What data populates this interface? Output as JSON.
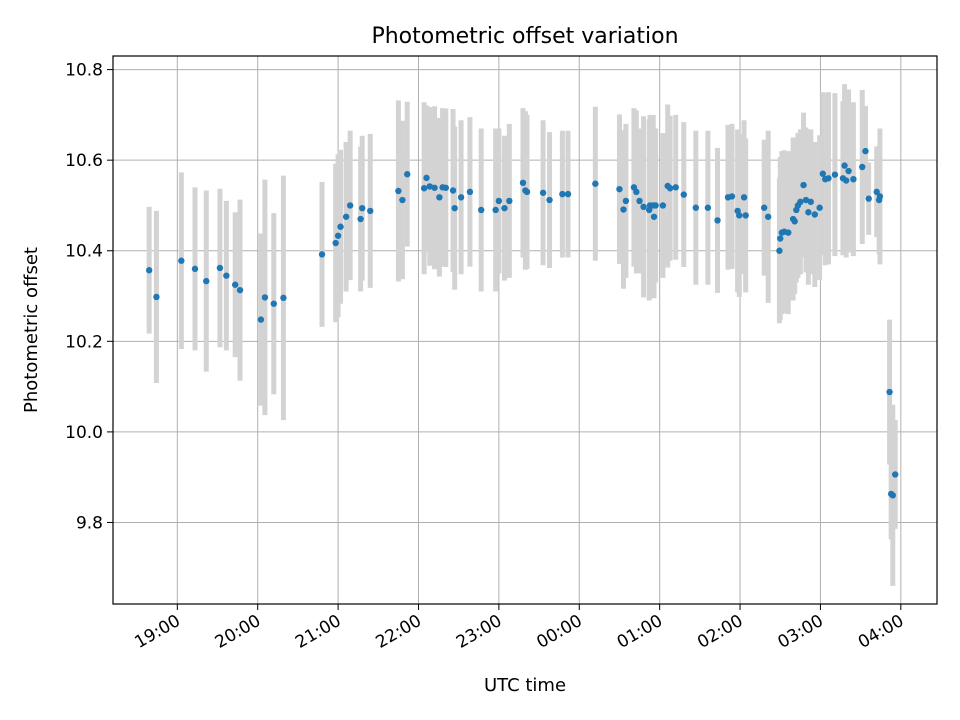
{
  "chart_data": {
    "type": "scatter",
    "title": "Photometric offset variation",
    "xlabel": "UTC time",
    "ylabel": "Photometric offset",
    "grid": true,
    "xlim": [
      -0.8,
      9.45
    ],
    "ylim": [
      9.62,
      10.83
    ],
    "xticks": [
      {
        "value": 0,
        "label": "19:00"
      },
      {
        "value": 1,
        "label": "20:00"
      },
      {
        "value": 2,
        "label": "21:00"
      },
      {
        "value": 3,
        "label": "22:00"
      },
      {
        "value": 4,
        "label": "23:00"
      },
      {
        "value": 5,
        "label": "00:00"
      },
      {
        "value": 6,
        "label": "01:00"
      },
      {
        "value": 7,
        "label": "02:00"
      },
      {
        "value": 8,
        "label": "03:00"
      },
      {
        "value": 9,
        "label": "04:00"
      }
    ],
    "yticks": [
      {
        "value": 9.8,
        "label": "9.8"
      },
      {
        "value": 10.0,
        "label": "10.0"
      },
      {
        "value": 10.2,
        "label": "10.2"
      },
      {
        "value": 10.4,
        "label": "10.4"
      },
      {
        "value": 10.6,
        "label": "10.6"
      },
      {
        "value": 10.8,
        "label": "10.8"
      }
    ],
    "series": [
      {
        "name": "offset",
        "color": "#1f77b4",
        "error_color": "#d3d3d3",
        "x": [
          -0.35,
          -0.26,
          0.05,
          0.22,
          0.36,
          0.53,
          0.61,
          0.72,
          0.78,
          1.04,
          1.09,
          1.2,
          1.32,
          1.8,
          1.97,
          2.0,
          2.03,
          2.1,
          2.15,
          2.28,
          2.3,
          2.4,
          2.75,
          2.8,
          2.86,
          3.07,
          3.1,
          3.14,
          3.2,
          3.26,
          3.3,
          3.34,
          3.43,
          3.45,
          3.53,
          3.64,
          3.78,
          3.96,
          4.0,
          4.07,
          4.13,
          4.3,
          4.33,
          4.35,
          4.55,
          4.63,
          4.79,
          4.86,
          5.2,
          5.5,
          5.55,
          5.58,
          5.68,
          5.71,
          5.75,
          5.8,
          5.87,
          5.88,
          5.92,
          5.93,
          5.95,
          6.04,
          6.1,
          6.13,
          6.2,
          6.3,
          6.45,
          6.6,
          6.72,
          6.85,
          6.9,
          6.97,
          6.99,
          7.05,
          7.07,
          7.3,
          7.35,
          7.49,
          7.5,
          7.52,
          7.55,
          7.6,
          7.66,
          7.68,
          7.7,
          7.72,
          7.75,
          7.79,
          7.82,
          7.85,
          7.88,
          7.93,
          7.99,
          8.03,
          8.06,
          8.1,
          8.18,
          8.28,
          8.3,
          8.32,
          8.35,
          8.41,
          8.52,
          8.56,
          8.6,
          8.7,
          8.73,
          8.74,
          8.86,
          8.88,
          8.9,
          8.93
        ],
        "y": [
          10.357,
          10.298,
          10.378,
          10.36,
          10.333,
          10.362,
          10.345,
          10.325,
          10.313,
          10.248,
          10.297,
          10.283,
          10.296,
          10.392,
          10.417,
          10.433,
          10.453,
          10.475,
          10.5,
          10.47,
          10.494,
          10.488,
          10.532,
          10.512,
          10.569,
          10.538,
          10.561,
          10.542,
          10.539,
          10.518,
          10.54,
          10.539,
          10.533,
          10.494,
          10.518,
          10.53,
          10.49,
          10.49,
          10.51,
          10.494,
          10.51,
          10.55,
          10.533,
          10.53,
          10.528,
          10.512,
          10.525,
          10.525,
          10.548,
          10.536,
          10.491,
          10.51,
          10.54,
          10.53,
          10.51,
          10.497,
          10.49,
          10.5,
          10.5,
          10.475,
          10.5,
          10.5,
          10.543,
          10.538,
          10.54,
          10.524,
          10.495,
          10.495,
          10.467,
          10.518,
          10.52,
          10.488,
          10.478,
          10.518,
          10.478,
          10.495,
          10.475,
          10.4,
          10.427,
          10.44,
          10.442,
          10.44,
          10.47,
          10.465,
          10.49,
          10.5,
          10.508,
          10.545,
          10.512,
          10.485,
          10.508,
          10.48,
          10.495,
          10.57,
          10.558,
          10.56,
          10.568,
          10.56,
          10.588,
          10.555,
          10.576,
          10.558,
          10.585,
          10.62,
          10.515,
          10.53,
          10.512,
          10.52,
          10.088,
          9.863,
          9.86,
          9.906
        ],
        "err": [
          0.14,
          0.19,
          0.195,
          0.18,
          0.2,
          0.175,
          0.165,
          0.16,
          0.2,
          0.19,
          0.26,
          0.2,
          0.27,
          0.16,
          0.175,
          0.18,
          0.17,
          0.165,
          0.165,
          0.16,
          0.16,
          0.17,
          0.2,
          0.175,
          0.16,
          0.19,
          0.16,
          0.175,
          0.18,
          0.175,
          0.175,
          0.175,
          0.18,
          0.18,
          0.17,
          0.165,
          0.18,
          0.18,
          0.16,
          0.16,
          0.17,
          0.165,
          0.175,
          0.17,
          0.16,
          0.15,
          0.14,
          0.14,
          0.17,
          0.165,
          0.175,
          0.17,
          0.175,
          0.18,
          0.16,
          0.2,
          0.2,
          0.2,
          0.2,
          0.18,
          0.17,
          0.16,
          0.18,
          0.16,
          0.16,
          0.16,
          0.17,
          0.17,
          0.16,
          0.16,
          0.16,
          0.18,
          0.18,
          0.17,
          0.17,
          0.15,
          0.19,
          0.16,
          0.18,
          0.18,
          0.18,
          0.18,
          0.18,
          0.16,
          0.16,
          0.16,
          0.16,
          0.16,
          0.16,
          0.16,
          0.16,
          0.16,
          0.16,
          0.18,
          0.19,
          0.19,
          0.18,
          0.17,
          0.18,
          0.17,
          0.18,
          0.17,
          0.17,
          0.1,
          0.08,
          0.1,
          0.12,
          0.15,
          0.16,
          0.1,
          0.2,
          0.12
        ]
      }
    ]
  }
}
